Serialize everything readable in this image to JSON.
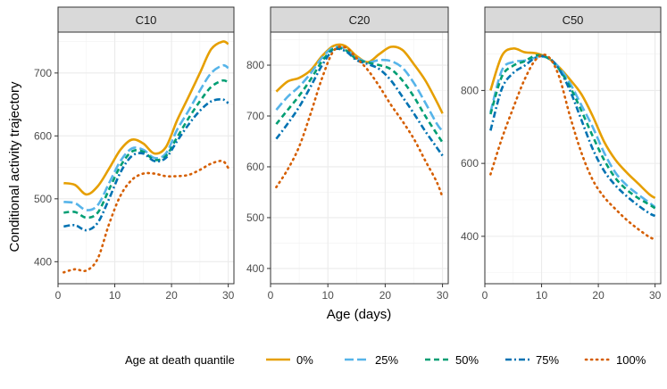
{
  "chart_data": {
    "type": "line",
    "ylabel": "Conditional activity trajectory",
    "xlabel": "Age (days)",
    "legend": {
      "title": "Age at death quantile",
      "placement": "bottom",
      "entries": [
        {
          "name": "0%",
          "color": "#E69F00",
          "dash": "solid"
        },
        {
          "name": "25%",
          "color": "#56B4E9",
          "dash": "longdash"
        },
        {
          "name": "50%",
          "color": "#009E73",
          "dash": "dashed"
        },
        {
          "name": "75%",
          "color": "#0072B2",
          "dash": "dotdash"
        },
        {
          "name": "100%",
          "color": "#D55E00",
          "dash": "dotted"
        }
      ]
    },
    "panels": [
      {
        "title": "C10",
        "xlim": [
          0,
          31
        ],
        "ylim": [
          365,
          765
        ],
        "xticks": [
          0,
          10,
          20,
          30
        ],
        "yticks": [
          400,
          500,
          600,
          700
        ],
        "series": [
          {
            "name": "0%",
            "x": [
              1,
              3,
              5,
              7,
              9,
              11,
              13,
              15,
              17,
              19,
              21,
              23,
              25,
              27,
              29,
              30
            ],
            "y": [
              525,
              522,
              507,
              520,
              548,
              578,
              594,
              588,
              572,
              582,
              625,
              662,
              700,
              738,
              750,
              746
            ]
          },
          {
            "name": "25%",
            "x": [
              1,
              3,
              5,
              7,
              9,
              11,
              13,
              15,
              17,
              19,
              21,
              23,
              25,
              27,
              29,
              30
            ],
            "y": [
              495,
              493,
              482,
              490,
              525,
              560,
              580,
              578,
              565,
              572,
              610,
              640,
              672,
              700,
              712,
              708
            ]
          },
          {
            "name": "50%",
            "x": [
              1,
              3,
              5,
              7,
              9,
              11,
              13,
              15,
              17,
              19,
              21,
              23,
              25,
              27,
              29,
              30
            ],
            "y": [
              478,
              479,
              470,
              478,
              515,
              552,
              575,
              575,
              562,
              568,
              598,
              628,
              655,
              678,
              688,
              685
            ]
          },
          {
            "name": "75%",
            "x": [
              1,
              3,
              5,
              7,
              9,
              11,
              13,
              15,
              17,
              19,
              21,
              23,
              25,
              27,
              29,
              30
            ],
            "y": [
              456,
              458,
              450,
              462,
              500,
              542,
              568,
              572,
              560,
              565,
              592,
              618,
              640,
              655,
              658,
              652
            ]
          },
          {
            "name": "100%",
            "x": [
              1,
              3,
              5,
              7,
              9,
              11,
              13,
              15,
              17,
              19,
              21,
              23,
              25,
              27,
              29,
              30
            ],
            "y": [
              383,
              388,
              386,
              405,
              460,
              505,
              530,
              540,
              540,
              536,
              536,
              538,
              546,
              556,
              560,
              549
            ]
          }
        ]
      },
      {
        "title": "C20",
        "xlim": [
          0,
          31
        ],
        "ylim": [
          370,
          865
        ],
        "xticks": [
          0,
          10,
          20,
          30
        ],
        "yticks": [
          400,
          500,
          600,
          700,
          800
        ],
        "series": [
          {
            "name": "0%",
            "x": [
              1,
              3,
              5,
              7,
              9,
              11,
              13,
              15,
              17,
              19,
              21,
              23,
              25,
              27,
              29,
              30
            ],
            "y": [
              748,
              768,
              775,
              790,
              818,
              838,
              838,
              818,
              806,
              822,
              836,
              830,
              802,
              770,
              728,
              705
            ]
          },
          {
            "name": "25%",
            "x": [
              1,
              3,
              5,
              7,
              9,
              11,
              13,
              15,
              17,
              19,
              21,
              23,
              25,
              27,
              29,
              30
            ],
            "y": [
              712,
              738,
              758,
              784,
              815,
              835,
              832,
              815,
              806,
              810,
              808,
              795,
              765,
              726,
              685,
              670
            ]
          },
          {
            "name": "50%",
            "x": [
              1,
              3,
              5,
              7,
              9,
              11,
              13,
              15,
              17,
              19,
              21,
              23,
              25,
              27,
              29,
              30
            ],
            "y": [
              684,
              712,
              740,
              772,
              808,
              832,
              830,
              812,
              805,
              800,
              792,
              770,
              738,
              700,
              665,
              648
            ]
          },
          {
            "name": "75%",
            "x": [
              1,
              3,
              5,
              7,
              9,
              11,
              13,
              15,
              17,
              19,
              21,
              23,
              25,
              27,
              29,
              30
            ],
            "y": [
              655,
              685,
              718,
              758,
              800,
              830,
              828,
              810,
              802,
              792,
              770,
              738,
              705,
              670,
              638,
              622
            ]
          },
          {
            "name": "100%",
            "x": [
              1,
              3,
              5,
              7,
              9,
              11,
              13,
              15,
              17,
              19,
              21,
              23,
              25,
              27,
              29,
              30
            ],
            "y": [
              560,
              595,
              640,
              705,
              775,
              828,
              835,
              814,
              790,
              758,
              722,
              690,
              655,
              612,
              570,
              540
            ]
          }
        ]
      },
      {
        "title": "C50",
        "xlim": [
          0,
          31
        ],
        "ylim": [
          270,
          960
        ],
        "xticks": [
          0,
          10,
          20,
          30
        ],
        "yticks": [
          400,
          600,
          800
        ],
        "series": [
          {
            "name": "0%",
            "x": [
              1,
              3,
              5,
              7,
              9,
              11,
              13,
              15,
              17,
              19,
              21,
              23,
              25,
              27,
              29,
              30
            ],
            "y": [
              800,
              895,
              915,
              905,
              902,
              890,
              865,
              830,
              790,
              730,
              660,
              610,
              575,
              545,
              515,
              505
            ]
          },
          {
            "name": "25%",
            "x": [
              1,
              3,
              5,
              7,
              9,
              11,
              13,
              15,
              17,
              19,
              21,
              23,
              25,
              27,
              29,
              30
            ],
            "y": [
              740,
              855,
              878,
              882,
              890,
              890,
              865,
              820,
              760,
              700,
              630,
              575,
              540,
              515,
              492,
              480
            ]
          },
          {
            "name": "50%",
            "x": [
              1,
              3,
              5,
              7,
              9,
              11,
              13,
              15,
              17,
              19,
              21,
              23,
              25,
              27,
              29,
              30
            ],
            "y": [
              735,
              838,
              868,
              880,
              896,
              890,
              860,
              810,
              745,
              675,
              610,
              560,
              528,
              505,
              487,
              477
            ]
          },
          {
            "name": "75%",
            "x": [
              1,
              3,
              5,
              7,
              9,
              11,
              13,
              15,
              17,
              19,
              21,
              23,
              25,
              27,
              29,
              30
            ],
            "y": [
              690,
              805,
              848,
              868,
              890,
              892,
              860,
              800,
              720,
              640,
              580,
              540,
              510,
              485,
              463,
              456
            ]
          },
          {
            "name": "100%",
            "x": [
              1,
              3,
              5,
              7,
              9,
              11,
              13,
              15,
              17,
              19,
              21,
              23,
              25,
              27,
              29,
              30
            ],
            "y": [
              570,
              668,
              752,
              830,
              885,
              895,
              842,
              730,
              630,
              555,
              508,
              475,
              445,
              420,
              398,
              392
            ]
          }
        ]
      }
    ]
  }
}
